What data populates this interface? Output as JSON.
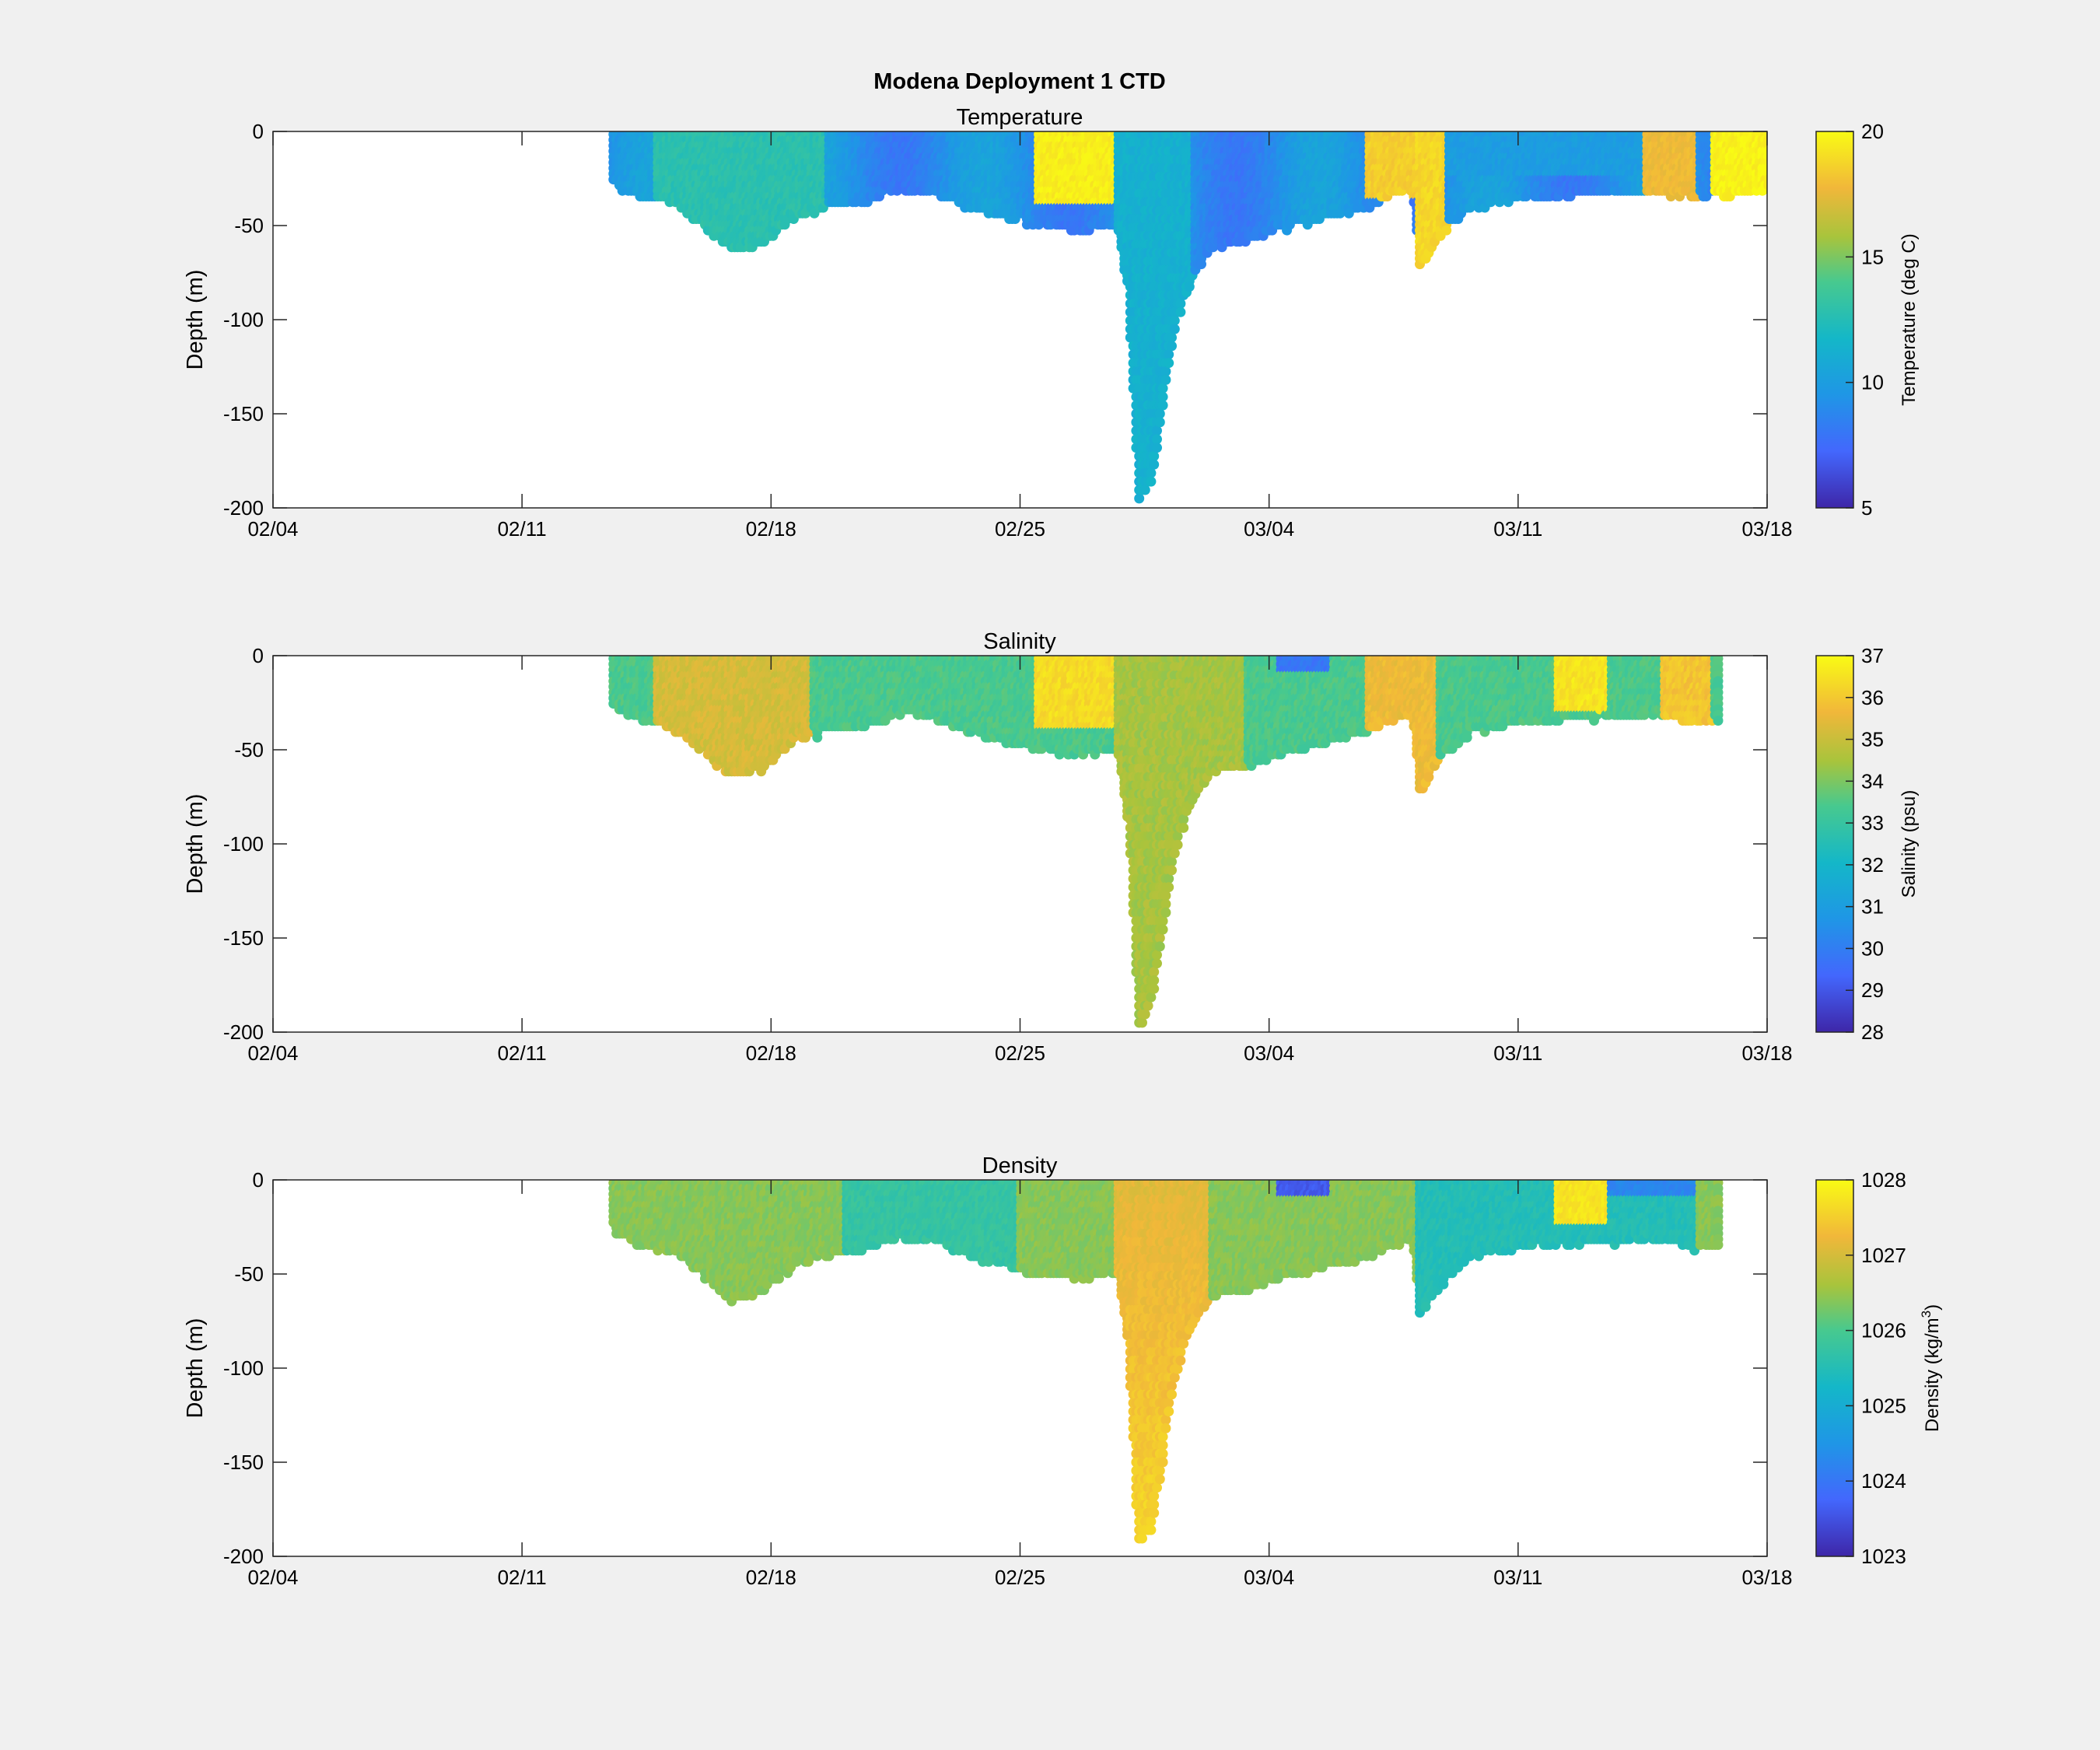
{
  "figure": {
    "suptitle": "Modena Deployment 1 CTD",
    "background": "#f0f0f0"
  },
  "chart_data": [
    {
      "type": "scatter",
      "title": "Temperature",
      "xlabel": "",
      "ylabel": "Depth (m)",
      "xlim": [
        "2024-02-04",
        "2024-03-18"
      ],
      "x_ticks": [
        "02/04",
        "02/11",
        "02/18",
        "02/25",
        "03/04",
        "03/11",
        "03/18"
      ],
      "ylim": [
        -200,
        0
      ],
      "y_ticks": [
        0,
        -50,
        -100,
        -150,
        -200
      ],
      "grid": false,
      "colorbar": {
        "label": "Temperature (deg C)",
        "label_sup": "",
        "label_end": "",
        "range": [
          5,
          20
        ],
        "ticks": [
          5,
          10,
          15,
          20
        ],
        "colormap": "parula"
      },
      "features": [
        {
          "x_start": "2024-02-09.8",
          "x_end": "2024-03-16.0",
          "max_depth": -197,
          "surface_values": "mostly 8-13, warm patches 18-20 near 02/22-02/24, 03/03-03/04, 03/12-03/16"
        },
        {
          "x": "2024-02-25.2",
          "depth": -197,
          "value": 11
        }
      ]
    },
    {
      "type": "scatter",
      "title": "Salinity",
      "xlabel": "",
      "ylabel": "Depth (m)",
      "xlim": [
        "2024-02-04",
        "2024-03-18"
      ],
      "x_ticks": [
        "02/04",
        "02/11",
        "02/18",
        "02/25",
        "03/04",
        "03/11",
        "03/18"
      ],
      "ylim": [
        -200,
        0
      ],
      "y_ticks": [
        0,
        -50,
        -100,
        -150,
        -200
      ],
      "grid": false,
      "colorbar": {
        "label": "Salinity (psu)",
        "label_sup": "",
        "label_end": "",
        "range": [
          28,
          37
        ],
        "ticks": [
          28,
          29,
          30,
          31,
          32,
          33,
          34,
          35,
          36,
          37
        ],
        "colormap": "parula"
      },
      "features": [
        {
          "x_start": "2024-02-09.8",
          "x_end": "2024-03-13.6",
          "max_depth": -197,
          "values": "mostly 33-35.5, deep cast ~34.5"
        }
      ]
    },
    {
      "type": "scatter",
      "title": "Density",
      "xlabel": "",
      "ylabel": "Depth (m)",
      "xlim": [
        "2024-02-04",
        "2024-03-18"
      ],
      "x_ticks": [
        "02/04",
        "02/11",
        "02/18",
        "02/25",
        "03/04",
        "03/11",
        "03/18"
      ],
      "ylim": [
        -200,
        0
      ],
      "y_ticks": [
        0,
        -50,
        -100,
        -150,
        -200
      ],
      "grid": false,
      "colorbar": {
        "label": "Density (kg/m",
        "label_sup": "3",
        "label_end": ")",
        "range": [
          1023,
          1028
        ],
        "ticks": [
          1023,
          1024,
          1025,
          1026,
          1027,
          1028
        ],
        "colormap": "parula"
      },
      "features": [
        {
          "x_start": "2024-02-09.8",
          "x_end": "2024-03-13.6",
          "max_depth": -197,
          "values": "mostly 1025.5-1027, deep cast ~1027.5"
        }
      ]
    }
  ]
}
